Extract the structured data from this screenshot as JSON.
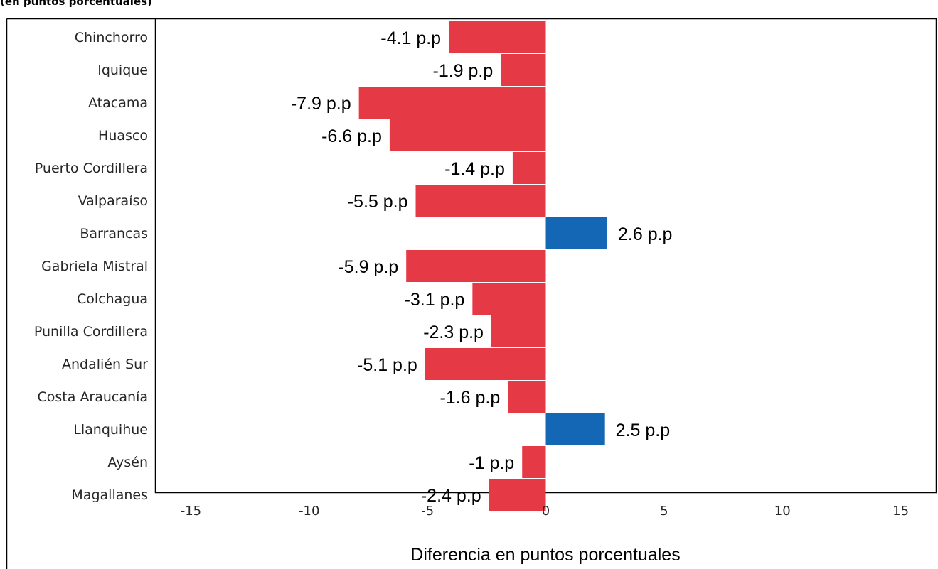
{
  "subtitle": "(en puntos porcentuales)",
  "chart_data": {
    "type": "bar",
    "orientation": "horizontal",
    "subtitle": "(en puntos porcentuales)",
    "xlabel": "Diferencia en puntos porcentuales",
    "ylabel": "",
    "xlim": [
      -16.5,
      16.5
    ],
    "xticks": [
      -15,
      -10,
      -5,
      0,
      5,
      10,
      15
    ],
    "grid": false,
    "value_suffix": " p.p",
    "categories": [
      "Chinchorro",
      "Iquique",
      "Atacama",
      "Huasco",
      "Puerto Cordillera",
      "Valparaíso",
      "Barrancas",
      "Gabriela Mistral",
      "Colchagua",
      "Punilla Cordillera",
      "Andalién Sur",
      "Costa Araucanía",
      "Llanquihue",
      "Aysén",
      "Magallanes"
    ],
    "values": [
      -4.1,
      -1.9,
      -7.9,
      -6.6,
      -1.4,
      -5.5,
      2.6,
      -5.9,
      -3.1,
      -2.3,
      -5.1,
      -1.6,
      2.5,
      -1,
      -2.4
    ],
    "colors": {
      "negative": "#e63946",
      "positive": "#1367b4"
    }
  }
}
